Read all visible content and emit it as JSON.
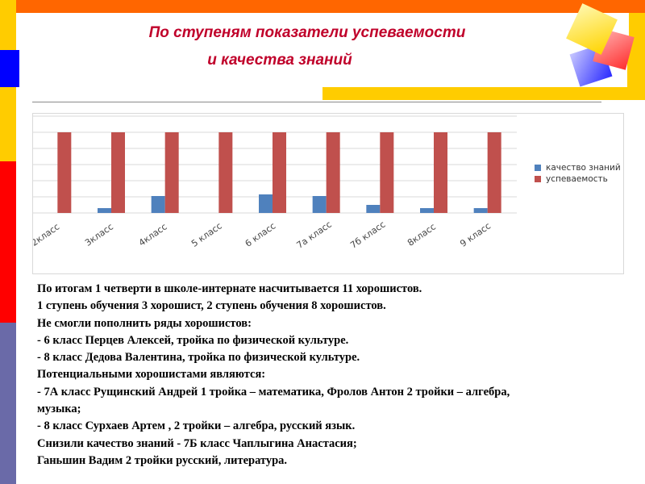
{
  "title": {
    "line1": "По ступеням показатели успеваемости",
    "line2": "и качества знаний"
  },
  "colors": {
    "accent_title": "#c0002a",
    "series_quality": "#4f81bd",
    "series_progress": "#c0504d"
  },
  "chart_data": {
    "type": "bar",
    "categories": [
      "2класс",
      "3класс",
      "4класс",
      "5 класс",
      "6 класс",
      "7а класс",
      "7б класс",
      "8класс",
      "9 класс"
    ],
    "series": [
      {
        "name": "качество знаний",
        "values": [
          0,
          6,
          21,
          0,
          23,
          21,
          10,
          6,
          6
        ]
      },
      {
        "name": "успеваемость",
        "values": [
          100,
          100,
          100,
          100,
          100,
          100,
          100,
          100,
          100
        ]
      }
    ],
    "ylim": [
      0,
      120
    ],
    "grid": true,
    "legend": "right"
  },
  "text_lines": [
    "По итогам 1 четверти в школе-интернате насчитывается 11 хорошистов.",
    "1 ступень обучения 3 хорошист, 2 ступень обучения 8 хорошистов.",
    "Не смогли пополнить ряды хорошистов:",
    "- 6 класс Перцев Алексей, тройка по физической культуре.",
    "- 8 класс Дедова Валентина, тройка по физической культуре.",
    "Потенциальными хорошистами являются:",
    "- 7А класс Рущинский Андрей 1 тройка – математика, Фролов Антон 2 тройки – алгебра,",
    "музыка;",
    "- 8 класс Сурхаев Артем , 2 тройки – алгебра, русский язык.",
    "Снизили качество знаний - 7Б класс Чаплыгина Анастасия;",
    "Ганьшин Вадим 2 тройки русский, литература."
  ]
}
